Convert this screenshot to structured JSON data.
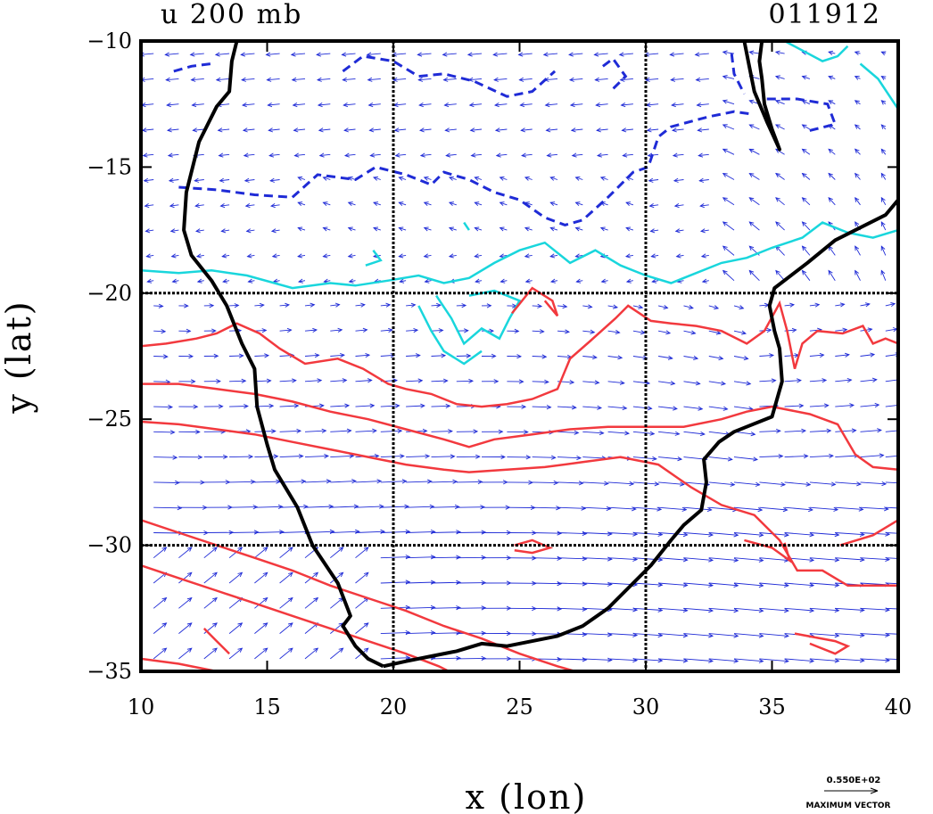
{
  "chart_data": {
    "type": "vector-field with contours",
    "title_left": "u 200 mb",
    "title_right": "011912",
    "xlabel": "x (lon)",
    "ylabel": "y (lat)",
    "xlim": [
      10,
      40
    ],
    "ylim": [
      -35,
      -10
    ],
    "xticks": [
      {
        "value": 10,
        "label": "10"
      },
      {
        "value": 15,
        "label": "15"
      },
      {
        "value": 20,
        "label": "20"
      },
      {
        "value": 25,
        "label": "25"
      },
      {
        "value": 30,
        "label": "30"
      },
      {
        "value": 35,
        "label": "35"
      },
      {
        "value": 40,
        "label": "40"
      }
    ],
    "yticks": [
      {
        "value": -10,
        "label": "−10"
      },
      {
        "value": -15,
        "label": "−15"
      },
      {
        "value": -20,
        "label": "−20"
      },
      {
        "value": -25,
        "label": "−25"
      },
      {
        "value": -30,
        "label": "−30"
      },
      {
        "value": -35,
        "label": "−35"
      }
    ],
    "gridlines": {
      "x": [
        20,
        30
      ],
      "y": [
        -20,
        -30
      ]
    },
    "colors": {
      "coast": "#000000",
      "negative_contour": "#1f2bd6",
      "low_contour": "#19d6dc",
      "positive_contour": "#f2393e",
      "vectors": "#1f2bd6"
    },
    "coastline": {
      "west": [
        [
          13.8,
          -10
        ],
        [
          13.6,
          -10.8
        ],
        [
          13.5,
          -12
        ],
        [
          13.0,
          -12.6
        ],
        [
          12.3,
          -14
        ],
        [
          11.8,
          -16
        ],
        [
          11.7,
          -17.5
        ],
        [
          12.0,
          -18.5
        ],
        [
          12.8,
          -19.5
        ],
        [
          13.4,
          -20.5
        ],
        [
          14.0,
          -22
        ],
        [
          14.5,
          -23
        ],
        [
          14.6,
          -24.5
        ],
        [
          15.0,
          -26
        ],
        [
          15.3,
          -27
        ],
        [
          16.2,
          -28.5
        ],
        [
          16.8,
          -30
        ],
        [
          17.8,
          -31.5
        ],
        [
          18.3,
          -32.8
        ],
        [
          18.0,
          -33.2
        ],
        [
          18.5,
          -34.0
        ],
        [
          19.0,
          -34.5
        ],
        [
          19.6,
          -34.8
        ]
      ],
      "south": [
        [
          19.6,
          -34.8
        ],
        [
          20.5,
          -34.6
        ],
        [
          21.5,
          -34.4
        ],
        [
          22.5,
          -34.2
        ],
        [
          23.5,
          -33.9
        ],
        [
          24.5,
          -34.0
        ],
        [
          25.5,
          -33.8
        ],
        [
          26.5,
          -33.6
        ],
        [
          27.5,
          -33.2
        ],
        [
          28.5,
          -32.5
        ],
        [
          29.5,
          -31.5
        ],
        [
          30.2,
          -30.8
        ],
        [
          31.0,
          -29.8
        ],
        [
          31.5,
          -29.2
        ],
        [
          32.2,
          -28.6
        ],
        [
          32.4,
          -27.5
        ],
        [
          32.3,
          -26.6
        ],
        [
          32.9,
          -25.9
        ],
        [
          33.5,
          -25.5
        ],
        [
          35.0,
          -24.9
        ],
        [
          35.4,
          -23.5
        ],
        [
          35.3,
          -22.2
        ],
        [
          35.1,
          -21.5
        ],
        [
          34.9,
          -20.5
        ],
        [
          35.1,
          -19.8
        ],
        [
          36.4,
          -18.8
        ],
        [
          37.5,
          -17.9
        ],
        [
          39.5,
          -16.9
        ],
        [
          40,
          -16.3
        ]
      ],
      "lake": [
        [
          33.9,
          -10
        ],
        [
          34.1,
          -11
        ],
        [
          34.3,
          -12
        ],
        [
          34.8,
          -13.2
        ],
        [
          35.3,
          -14.3
        ],
        [
          35.0,
          -13.5
        ],
        [
          34.7,
          -12.5
        ],
        [
          34.6,
          -11.5
        ],
        [
          34.5,
          -10.8
        ],
        [
          34.6,
          -10
        ]
      ]
    },
    "contours": {
      "negative": [
        [
          [
            11.5,
            -15.8
          ],
          [
            13,
            -15.9
          ],
          [
            14.5,
            -16.1
          ],
          [
            16,
            -16.2
          ],
          [
            17,
            -15.3
          ],
          [
            18.5,
            -15.5
          ],
          [
            19.3,
            -15.0
          ],
          [
            20.5,
            -15.3
          ],
          [
            21.5,
            -15.7
          ],
          [
            22,
            -15.2
          ],
          [
            23,
            -15.5
          ],
          [
            24,
            -16.0
          ],
          [
            25,
            -16.3
          ],
          [
            26,
            -17.0
          ],
          [
            26.8,
            -17.3
          ],
          [
            27.5,
            -17.1
          ],
          [
            28.5,
            -16.2
          ],
          [
            29.5,
            -15.2
          ],
          [
            30.1,
            -15.0
          ],
          [
            30.5,
            -13.8
          ],
          [
            31.0,
            -13.4
          ],
          [
            32.5,
            -13.0
          ],
          [
            33.5,
            -12.8
          ],
          [
            34.2,
            -12.9
          ]
        ],
        [
          [
            18.0,
            -11.2
          ],
          [
            18.8,
            -10.6
          ],
          [
            20.0,
            -10.8
          ],
          [
            21.0,
            -11.4
          ],
          [
            22.0,
            -11.3
          ],
          [
            23.2,
            -11.6
          ],
          [
            24.5,
            -12.2
          ],
          [
            25.5,
            -12.0
          ],
          [
            26.4,
            -11.2
          ]
        ],
        [
          [
            11.3,
            -11.2
          ],
          [
            12.0,
            -11.0
          ],
          [
            12.8,
            -10.9
          ]
        ],
        [
          [
            33.4,
            -10.5
          ],
          [
            33.5,
            -11.3
          ],
          [
            33.9,
            -12.1
          ]
        ],
        [
          [
            34.8,
            -12.3
          ],
          [
            36.0,
            -12.3
          ],
          [
            37.2,
            -12.5
          ],
          [
            37.5,
            -13.3
          ],
          [
            36.3,
            -13.6
          ]
        ],
        [
          [
            28.3,
            -11.0
          ],
          [
            28.7,
            -10.7
          ],
          [
            29.2,
            -11.4
          ],
          [
            28.7,
            -11.9
          ]
        ]
      ],
      "low": [
        [
          [
            10,
            -19.1
          ],
          [
            11.5,
            -19.2
          ],
          [
            12.8,
            -19.1
          ],
          [
            14.2,
            -19.3
          ],
          [
            16.0,
            -19.8
          ],
          [
            17.5,
            -19.6
          ],
          [
            18.5,
            -19.7
          ],
          [
            19.8,
            -19.5
          ],
          [
            21.0,
            -19.3
          ],
          [
            22.0,
            -19.6
          ],
          [
            23.0,
            -19.4
          ],
          [
            24.0,
            -18.8
          ],
          [
            25.0,
            -18.3
          ],
          [
            26.0,
            -18.0
          ],
          [
            27.0,
            -18.8
          ],
          [
            28.0,
            -18.3
          ],
          [
            29.0,
            -18.9
          ],
          [
            30.0,
            -19.3
          ],
          [
            31.0,
            -19.6
          ],
          [
            32.0,
            -19.2
          ],
          [
            33.0,
            -18.8
          ],
          [
            34.0,
            -18.6
          ],
          [
            35.0,
            -18.2
          ],
          [
            36.2,
            -17.8
          ],
          [
            37.0,
            -17.2
          ],
          [
            38.0,
            -17.6
          ],
          [
            39.0,
            -17.8
          ],
          [
            40,
            -17.5
          ]
        ],
        [
          [
            21.7,
            -20.1
          ],
          [
            22.3,
            -21.0
          ],
          [
            22.8,
            -22.0
          ],
          [
            23.5,
            -21.4
          ],
          [
            24.2,
            -21.8
          ],
          [
            24.6,
            -21.0
          ],
          [
            25.0,
            -20.3
          ],
          [
            24.0,
            -19.9
          ],
          [
            23.0,
            -20.1
          ]
        ],
        [
          [
            21.0,
            -20.5
          ],
          [
            21.5,
            -21.5
          ],
          [
            22.0,
            -22.3
          ],
          [
            22.8,
            -22.8
          ],
          [
            23.5,
            -22.3
          ]
        ],
        [
          [
            35.5,
            -10
          ],
          [
            37.0,
            -10.8
          ],
          [
            37.6,
            -10.6
          ],
          [
            38.0,
            -10.2
          ]
        ],
        [
          [
            38.5,
            -10.9
          ],
          [
            39.2,
            -11.5
          ],
          [
            40,
            -12.7
          ]
        ],
        [
          [
            19.2,
            -18.3
          ],
          [
            19.5,
            -18.7
          ],
          [
            18.9,
            -18.9
          ]
        ],
        [
          [
            22.8,
            -17.2
          ],
          [
            23.0,
            -17.5
          ]
        ]
      ],
      "positive": [
        [
          [
            10,
            -22.1
          ],
          [
            11,
            -22.0
          ],
          [
            12.2,
            -21.8
          ],
          [
            13.0,
            -21.6
          ],
          [
            13.8,
            -21.2
          ],
          [
            14.7,
            -21.6
          ],
          [
            15.5,
            -22.2
          ],
          [
            16.5,
            -22.8
          ],
          [
            17.8,
            -22.6
          ],
          [
            18.8,
            -23.0
          ],
          [
            19.8,
            -23.6
          ],
          [
            20.5,
            -23.8
          ],
          [
            21.5,
            -24.0
          ],
          [
            22.5,
            -24.4
          ],
          [
            23.5,
            -24.5
          ],
          [
            24.5,
            -24.4
          ],
          [
            25.5,
            -24.2
          ],
          [
            26.5,
            -23.8
          ],
          [
            27.0,
            -22.6
          ],
          [
            27.8,
            -21.9
          ],
          [
            28.8,
            -21.0
          ],
          [
            29.3,
            -20.5
          ],
          [
            30.2,
            -21.1
          ],
          [
            31.0,
            -21.2
          ],
          [
            32.0,
            -21.3
          ],
          [
            33.0,
            -21.5
          ],
          [
            34.0,
            -22.0
          ],
          [
            34.7,
            -21.5
          ],
          [
            35.3,
            -20.4
          ],
          [
            35.6,
            -21.5
          ],
          [
            35.9,
            -23.0
          ],
          [
            36.2,
            -22.0
          ],
          [
            36.8,
            -21.5
          ],
          [
            37.8,
            -21.6
          ],
          [
            38.6,
            -21.3
          ],
          [
            39.0,
            -22.0
          ],
          [
            39.5,
            -21.8
          ],
          [
            40,
            -22.0
          ]
        ],
        [
          [
            10,
            -23.6
          ],
          [
            11.5,
            -23.6
          ],
          [
            13.0,
            -23.8
          ],
          [
            14.5,
            -24.0
          ],
          [
            16.0,
            -24.3
          ],
          [
            17.5,
            -24.7
          ],
          [
            19.0,
            -25.0
          ],
          [
            20.5,
            -25.4
          ],
          [
            22.0,
            -25.8
          ],
          [
            23.0,
            -26.1
          ],
          [
            24.0,
            -25.8
          ],
          [
            25.5,
            -25.6
          ],
          [
            27.0,
            -25.4
          ],
          [
            28.5,
            -25.3
          ],
          [
            30.0,
            -25.3
          ],
          [
            31.5,
            -25.3
          ],
          [
            33.0,
            -25.0
          ],
          [
            34.0,
            -24.7
          ],
          [
            35.0,
            -24.5
          ],
          [
            36.5,
            -24.8
          ],
          [
            37.6,
            -25.2
          ],
          [
            38.3,
            -26.4
          ],
          [
            39.0,
            -26.9
          ],
          [
            40,
            -27.0
          ]
        ],
        [
          [
            10,
            -25.1
          ],
          [
            11.5,
            -25.2
          ],
          [
            13.0,
            -25.4
          ],
          [
            14.5,
            -25.6
          ],
          [
            16.0,
            -25.9
          ],
          [
            17.5,
            -26.2
          ],
          [
            19.0,
            -26.5
          ],
          [
            20.5,
            -26.8
          ],
          [
            22.0,
            -27.0
          ],
          [
            23.0,
            -27.1
          ],
          [
            24.5,
            -27.0
          ],
          [
            26.0,
            -26.9
          ],
          [
            27.5,
            -26.7
          ],
          [
            29.0,
            -26.5
          ],
          [
            30.5,
            -26.8
          ],
          [
            31.8,
            -27.7
          ],
          [
            33.0,
            -28.4
          ],
          [
            34.3,
            -28.8
          ],
          [
            35.3,
            -29.8
          ],
          [
            36.0,
            -31.0
          ],
          [
            37.0,
            -31.0
          ],
          [
            38.0,
            -31.6
          ],
          [
            39.0,
            -31.6
          ],
          [
            40,
            -31.6
          ]
        ],
        [
          [
            10,
            -29.0
          ],
          [
            11.5,
            -29.5
          ],
          [
            13.0,
            -30.0
          ],
          [
            14.5,
            -30.5
          ],
          [
            16.0,
            -31.0
          ],
          [
            17.5,
            -31.6
          ],
          [
            19.0,
            -32.1
          ],
          [
            20.5,
            -32.6
          ],
          [
            22.0,
            -33.2
          ],
          [
            23.5,
            -33.7
          ],
          [
            25.0,
            -34.3
          ],
          [
            26.5,
            -34.8
          ],
          [
            27.2,
            -35
          ]
        ],
        [
          [
            10,
            -30.8
          ],
          [
            11.5,
            -31.3
          ],
          [
            13.0,
            -31.8
          ],
          [
            14.5,
            -32.3
          ],
          [
            16.0,
            -32.8
          ],
          [
            17.5,
            -33.3
          ],
          [
            19.0,
            -33.8
          ],
          [
            20.5,
            -34.3
          ],
          [
            21.8,
            -34.8
          ],
          [
            22.2,
            -35
          ]
        ],
        [
          [
            10,
            -34.5
          ],
          [
            11.5,
            -34.7
          ],
          [
            13.0,
            -35
          ]
        ],
        [
          [
            13.5,
            -34.3
          ],
          [
            13.0,
            -33.8
          ],
          [
            12.5,
            -33.3
          ]
        ],
        [
          [
            24.7,
            -20.8
          ],
          [
            25.5,
            -19.8
          ],
          [
            26.3,
            -20.3
          ],
          [
            26.5,
            -20.9
          ],
          [
            26.0,
            -20.3
          ]
        ],
        [
          [
            24.8,
            -30.0
          ],
          [
            25.5,
            -29.8
          ],
          [
            26.2,
            -30.1
          ],
          [
            25.5,
            -30.3
          ],
          [
            24.8,
            -30.2
          ]
        ],
        [
          [
            35.9,
            -33.5
          ],
          [
            37.5,
            -33.8
          ],
          [
            38.0,
            -34.0
          ],
          [
            37.5,
            -34.3
          ],
          [
            36.5,
            -33.9
          ]
        ],
        [
          [
            33.9,
            -29.8
          ],
          [
            35.0,
            -30.1
          ],
          [
            35.7,
            -30.6
          ],
          [
            35.5,
            -29.9
          ]
        ],
        [
          [
            37.7,
            -30.0
          ],
          [
            39.0,
            -29.6
          ],
          [
            40,
            -29.0
          ]
        ]
      ]
    },
    "vectors": {
      "spacing_deg": 1.0,
      "max_label": "0.550E+02",
      "max_caption": "MAXIMUM VECTOR"
    }
  }
}
